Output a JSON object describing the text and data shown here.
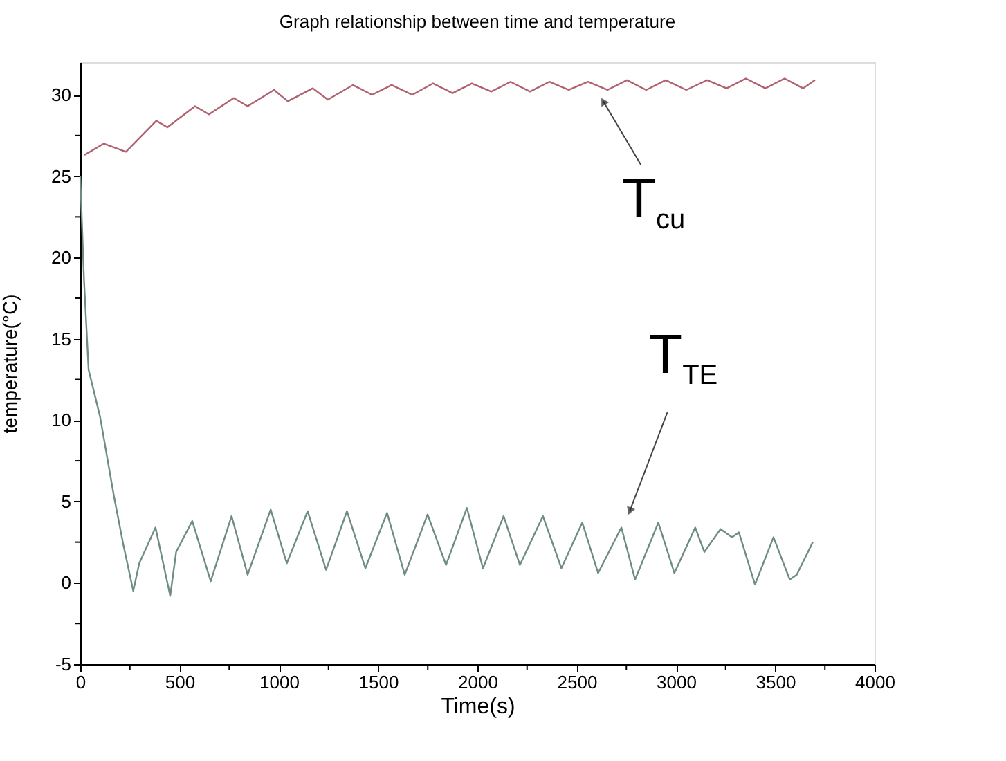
{
  "chart_data": {
    "type": "line",
    "title": "Graph relationship between time and temperature",
    "xlabel": "Time(s)",
    "ylabel": "temperature(°C)",
    "xlim": [
      0,
      4000
    ],
    "ylim": [
      -5,
      32
    ],
    "xticks": [
      0,
      {
        "value": 250,
        "label": null
      },
      500,
      {
        "value": 750,
        "label": null
      },
      1000,
      {
        "value": 1250,
        "label": null
      },
      1500,
      {
        "value": 1750,
        "label": null
      },
      2000,
      {
        "value": 2250,
        "label": null
      },
      2500,
      {
        "value": 2750,
        "label": null
      },
      3000,
      {
        "value": 3250,
        "label": null
      },
      3500,
      {
        "value": 3750,
        "label": null
      },
      4000
    ],
    "yticks": [
      -5,
      {
        "value": -2.5,
        "label": null
      },
      0,
      {
        "value": 2.5,
        "label": null
      },
      5,
      {
        "value": 7.5,
        "label": null
      },
      10,
      {
        "value": 12.5,
        "label": null
      },
      15,
      {
        "value": 17.5,
        "label": null
      },
      20,
      {
        "value": 22.5,
        "label": null
      },
      25,
      {
        "value": 27.5,
        "label": null
      },
      30
    ],
    "marker": "none",
    "line_style": "solid",
    "series": [
      {
        "color": "#b0606e",
        "x": [
          21,
          119,
          230,
          383,
          439,
          578,
          648,
          773,
          843,
          976,
          1045,
          1171,
          1247,
          1373,
          1470,
          1568,
          1672,
          1777,
          1875,
          1972,
          2070,
          2167,
          2265,
          2362,
          2460,
          2557,
          2655,
          2753,
          2850,
          2948,
          3052,
          3157,
          3255,
          3352,
          3450,
          3547,
          3640,
          3700
        ],
        "values": [
          26.3,
          27.0,
          26.5,
          28.4,
          28.0,
          29.3,
          28.8,
          29.8,
          29.3,
          30.3,
          29.6,
          30.4,
          29.7,
          30.6,
          30.0,
          30.6,
          30.0,
          30.7,
          30.1,
          30.7,
          30.2,
          30.8,
          30.2,
          30.8,
          30.3,
          30.8,
          30.3,
          30.9,
          30.3,
          30.9,
          30.3,
          30.9,
          30.4,
          31.0,
          30.4,
          31.0,
          30.4,
          30.9
        ]
      },
      {
        "color": "#6f8c84",
        "x": [
          0,
          19,
          42,
          100,
          170,
          216,
          267,
          297,
          379,
          453,
          483,
          564,
          657,
          762,
          843,
          959,
          1040,
          1145,
          1238,
          1343,
          1436,
          1545,
          1634,
          1749,
          1842,
          1947,
          2028,
          2132,
          2214,
          2330,
          2423,
          2528,
          2608,
          2725,
          2794,
          2911,
          2992,
          3097,
          3143,
          3224,
          3282,
          3317,
          3398,
          3491,
          3573,
          3608,
          3689
        ],
        "values": [
          25,
          18.6,
          13.1,
          10.2,
          5.3,
          2.4,
          -0.5,
          1.2,
          3.4,
          -0.8,
          1.9,
          3.8,
          0.1,
          4.1,
          0.5,
          4.5,
          1.2,
          4.4,
          0.8,
          4.4,
          0.9,
          4.3,
          0.5,
          4.2,
          1.1,
          4.6,
          0.9,
          4.1,
          1.1,
          4.1,
          0.9,
          3.7,
          0.6,
          3.4,
          0.2,
          3.7,
          0.6,
          3.4,
          1.9,
          3.3,
          2.8,
          3.1,
          -0.1,
          2.8,
          0.2,
          0.5,
          2.5
        ]
      }
    ],
    "annotations": [
      {
        "text": "T$_{cu}$",
        "x": 2634,
        "y": 29.6
      },
      {
        "text": "T$_{TE}$",
        "x": 2767,
        "y": 4.4
      }
    ]
  }
}
